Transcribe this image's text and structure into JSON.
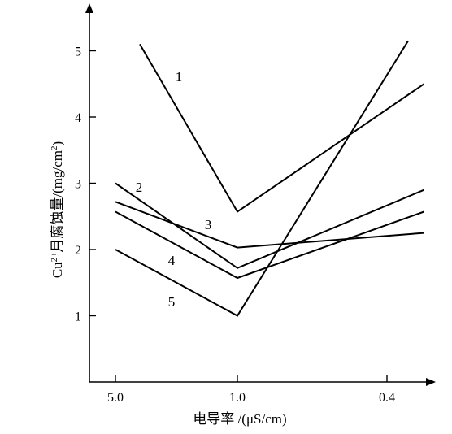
{
  "chart_data": {
    "type": "line",
    "xlabel": "电导率 /(μS/cm)",
    "ylabel_parts": {
      "prefix": "Cu",
      "sup1": "2+",
      "middle": "月腐蚀量/(mg/cm",
      "sup2": "2",
      "suffix": ")"
    },
    "x_ticks": [
      "5.0",
      "1.0",
      "0.4"
    ],
    "y_ticks": [
      "1",
      "2",
      "3",
      "4",
      "5"
    ],
    "ylim": [
      0,
      5.6
    ],
    "series": [
      {
        "name": "1",
        "x": [
          0.2,
          1.0,
          2.53
        ],
        "y": [
          5.1,
          2.57,
          4.5
        ]
      },
      {
        "name": "2",
        "x": [
          0.0,
          1.0,
          2.53
        ],
        "y": [
          3.0,
          1.72,
          2.9
        ]
      },
      {
        "name": "3",
        "x": [
          0.0,
          1.0,
          2.53
        ],
        "y": [
          2.72,
          2.03,
          2.25
        ]
      },
      {
        "name": "4",
        "x": [
          0.0,
          1.0,
          2.53
        ],
        "y": [
          2.57,
          1.57,
          2.57
        ]
      },
      {
        "name": "5",
        "x": [
          0.0,
          1.0,
          2.4
        ],
        "y": [
          2.0,
          1.0,
          5.15
        ]
      }
    ]
  }
}
